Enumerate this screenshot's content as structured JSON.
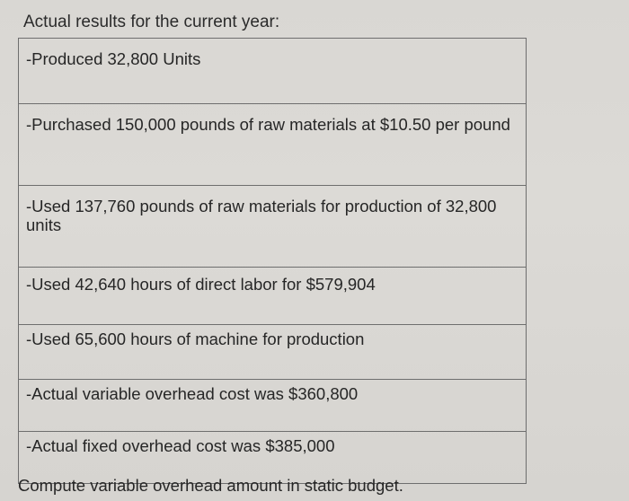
{
  "heading": "Actual results for the current year:",
  "rows": [
    "-Produced 32,800 Units",
    "-Purchased 150,000 pounds of raw materials at $10.50 per pound",
    "-Used 137,760 pounds of raw materials for production of 32,800 units",
    "-Used 42,640 hours of direct labor for $579,904",
    "-Used 65,600 hours of machine for production",
    "-Actual variable overhead cost was $360,800",
    "-Actual fixed overhead cost was $385,000"
  ],
  "question": "Compute variable overhead amount in static budget."
}
